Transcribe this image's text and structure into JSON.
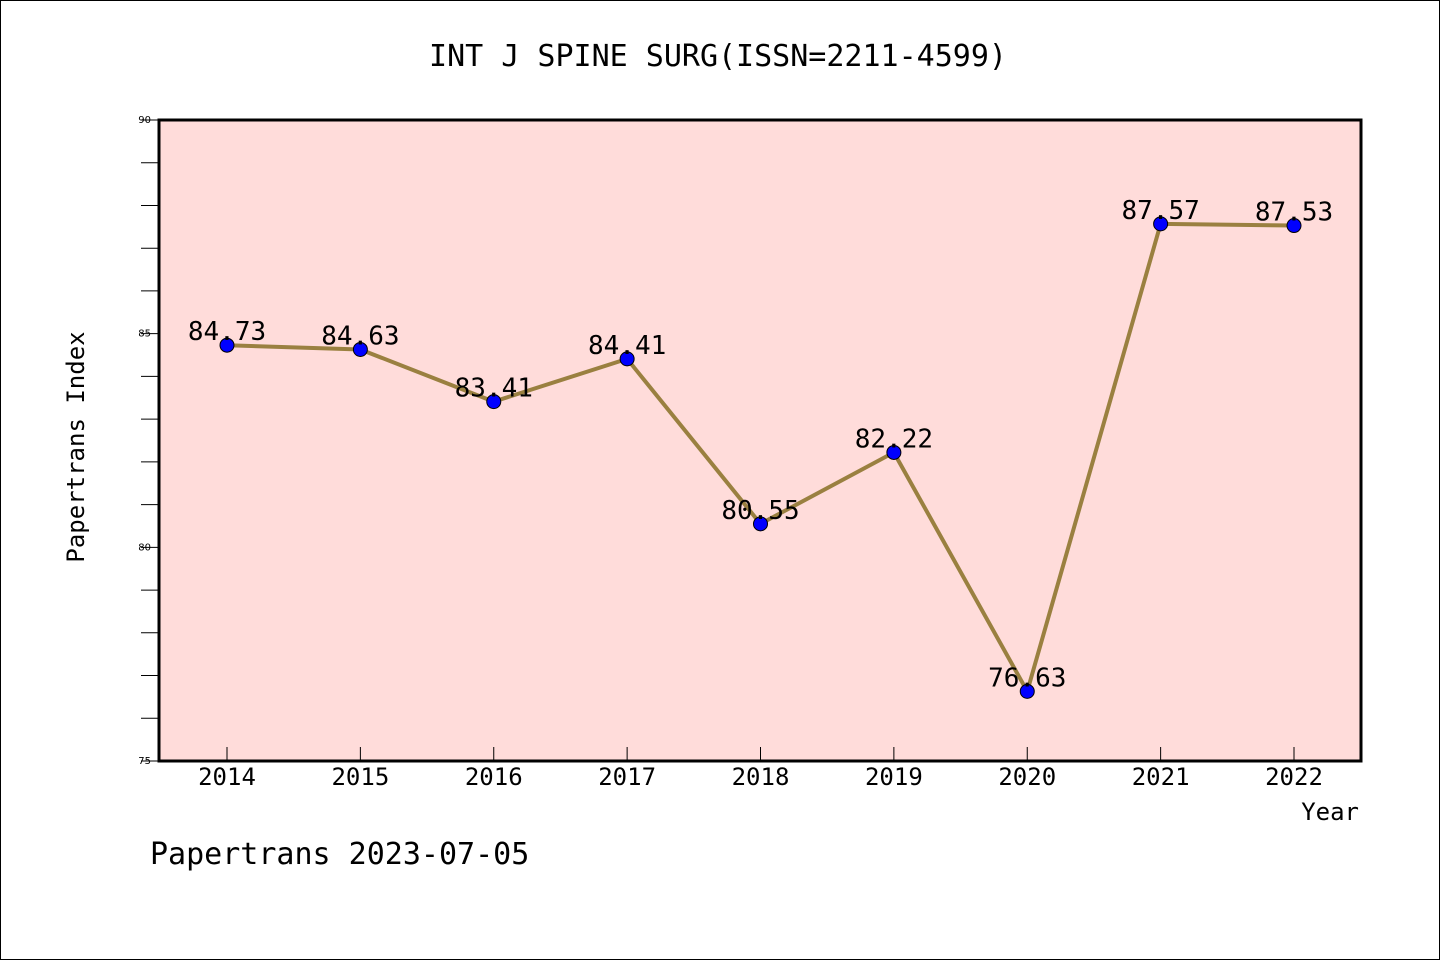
{
  "chart_data": {
    "type": "line",
    "title": "INT J SPINE SURG(ISSN=2211-4599)",
    "xlabel": "Year",
    "ylabel": "Papertrans Index",
    "categories": [
      "2014",
      "2015",
      "2016",
      "2017",
      "2018",
      "2019",
      "2020",
      "2021",
      "2022"
    ],
    "values": [
      84.73,
      84.63,
      83.41,
      84.41,
      80.55,
      82.22,
      76.63,
      87.57,
      87.53
    ],
    "data_labels": [
      "84.73",
      "84.63",
      "83.41",
      "84.41",
      "80.55",
      "82.22",
      "76.63",
      "87.57",
      "87.53"
    ],
    "ylim": [
      75,
      90
    ],
    "y_ticks": [
      75,
      80,
      85,
      90
    ],
    "grid": false,
    "legend": "none",
    "colors": {
      "plot_background": "#FFDCDA",
      "line": "#9A8040",
      "marker": "#0000FF"
    }
  },
  "footer": "Papertrans 2023-07-05"
}
